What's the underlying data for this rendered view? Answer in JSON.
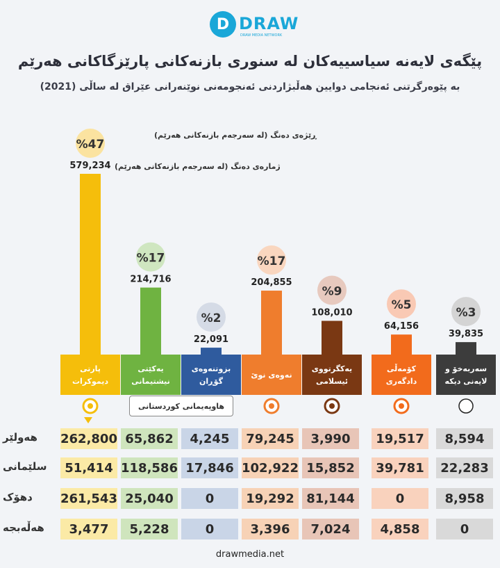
{
  "header": {
    "brand": "DRAW",
    "brand_letter": "D",
    "brand_tagline": "DRAW MEDIA NETWORK",
    "title": "پێگەی لایەنە سیاسییەکان لە سنوری بازنەکانی پارێزگاکانی هەرێم",
    "subtitle": "بە پێوەرگرتنی ئەنجامی دوایین هەڵبژاردنی ئەنجومەنی نوێنەرانی عێراق لە ساڵی (2021)"
  },
  "legend": {
    "percent_note": "ڕێژەی دەنگ (لە سەرجەم بازنەکانی هەرێم)",
    "votes_note": "ژمارەی دەنگ (لە سەرجەم بازنەکانی هەرێم)"
  },
  "alliance_label": "هاوپەیمانی کوردستانی",
  "footer": {
    "website": "drawmedia.net"
  },
  "chart_data": {
    "type": "bar",
    "title": "پێگەی لایەنە سیاسییەکان لە سنوری بازنەکانی پارێزگاکانی هەرێم",
    "subtitle": "بە پێوەرگرتنی ئەنجامی دوایین هەڵبژاردنی ئەنجومەنی نوێنەرانی عێراق لە ساڵی (2021)",
    "categories": [
      "پارتی دیموکرات",
      "یەکێتی نیشتیمانی",
      "بزوتنەوەی گۆڕان",
      "نەوەی نوێ",
      "یەکگرتووی ئیسلامی",
      "کۆمەڵی دادگەری",
      "سەربەخۆ و لایەنی دیکە"
    ],
    "colors": [
      "#f5be0b",
      "#6fb341",
      "#2f5b9e",
      "#ef7d2d",
      "#7a3813",
      "#f26b1c",
      "#3c3c3c"
    ],
    "light_colors": [
      "#fbeaa6",
      "#cfe5bd",
      "#c9d5e7",
      "#f7d2b6",
      "#e8c5b7",
      "#f9d2bd",
      "#d9d9d9"
    ],
    "circle_colors": [
      "#fbe3a0",
      "#cfe6c0",
      "#d5dbe6",
      "#f9d6bf",
      "#e7c9be",
      "#f9c9b4",
      "#d4d4d4"
    ],
    "total_votes": [
      579234,
      214716,
      22091,
      204855,
      108010,
      64156,
      39835
    ],
    "total_votes_labels": [
      "579,234",
      "214,716",
      "22,091",
      "204,855",
      "108,010",
      "64,156",
      "39,835"
    ],
    "percent": [
      47,
      17,
      2,
      17,
      9,
      5,
      3
    ],
    "percent_labels": [
      "%47",
      "%17",
      "%2",
      "%17",
      "%9",
      "%5",
      "%3"
    ],
    "ylim": [
      0,
      600000
    ],
    "provinces": [
      "هەولێر",
      "سلێمانی",
      "دهۆک",
      "هەڵەبجە"
    ],
    "province_votes": [
      [
        "262,800",
        "65,862",
        "4,245",
        "79,245",
        "3,990",
        "19,517",
        "8,594"
      ],
      [
        "51,414",
        "118,586",
        "17,846",
        "102,922",
        "15,852",
        "39,781",
        "22,283"
      ],
      [
        "261,543",
        "25,040",
        "0",
        "19,292",
        "81,144",
        "0",
        "8,958"
      ],
      [
        "3,477",
        "5,228",
        "0",
        "3,396",
        "7,024",
        "4,858",
        "0"
      ]
    ]
  }
}
